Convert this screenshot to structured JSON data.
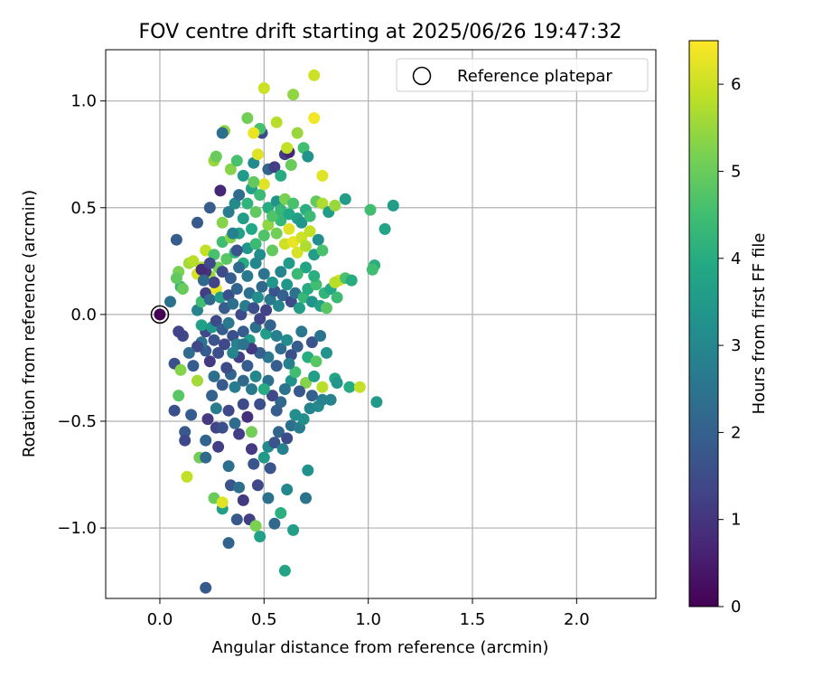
{
  "chart_data": {
    "type": "scatter",
    "title": "FOV centre drift starting at 2025/06/26 19:47:32",
    "xlabel": "Angular distance from reference (arcmin)",
    "ylabel": "Rotation from reference (arcmin)",
    "xlim": [
      -0.26,
      2.38
    ],
    "ylim": [
      -1.33,
      1.24
    ],
    "xticks": [
      0.0,
      0.5,
      1.0,
      1.5,
      2.0
    ],
    "xtick_labels": [
      "0.0",
      "0.5",
      "1.0",
      "1.5",
      "2.0"
    ],
    "yticks": [
      -1.0,
      -0.5,
      0.0,
      0.5,
      1.0
    ],
    "ytick_labels": [
      "−1.0",
      "−0.5",
      "0.0",
      "0.5",
      "1.0"
    ],
    "grid": true,
    "legend": {
      "placement": "top-right",
      "entries": [
        "Reference platepar"
      ]
    },
    "reference_point": {
      "x": 0.0,
      "y": 0.0,
      "color_value": 0.0
    },
    "colorbar": {
      "label": "Hours from first FF file",
      "range": [
        0,
        6.5
      ],
      "ticks": [
        0,
        1,
        2,
        3,
        4,
        5,
        6
      ],
      "tick_labels": [
        "0",
        "1",
        "2",
        "3",
        "4",
        "5",
        "6"
      ],
      "colormap": "viridis"
    },
    "points": [
      [
        0.22,
        -1.28,
        1.8
      ],
      [
        0.33,
        -1.07,
        2.1
      ],
      [
        0.6,
        -1.2,
        3.8
      ],
      [
        0.13,
        -0.76,
        5.9
      ],
      [
        0.19,
        -0.67,
        5.1
      ],
      [
        0.22,
        -0.67,
        2.2
      ],
      [
        0.26,
        -0.86,
        5.0
      ],
      [
        0.3,
        -0.91,
        3.6
      ],
      [
        0.3,
        -0.88,
        6.2
      ],
      [
        0.34,
        -0.8,
        1.7
      ],
      [
        0.38,
        -0.81,
        2.4
      ],
      [
        0.4,
        -0.87,
        1.1
      ],
      [
        0.37,
        -0.96,
        1.8
      ],
      [
        0.43,
        -0.96,
        1.2
      ],
      [
        0.46,
        -0.99,
        5.2
      ],
      [
        0.48,
        -1.04,
        3.7
      ],
      [
        0.55,
        -0.98,
        2.2
      ],
      [
        0.64,
        -1.01,
        3.6
      ],
      [
        0.58,
        -0.93,
        4.1
      ],
      [
        0.52,
        -0.86,
        2.4
      ],
      [
        0.61,
        -0.82,
        3.0
      ],
      [
        0.71,
        -0.73,
        3.3
      ],
      [
        0.7,
        -0.86,
        2.5
      ],
      [
        0.47,
        -0.8,
        1.4
      ],
      [
        0.33,
        -0.71,
        2.4
      ],
      [
        0.28,
        -0.62,
        1.2
      ],
      [
        0.22,
        -0.59,
        2.1
      ],
      [
        0.12,
        -0.55,
        1.8
      ],
      [
        0.12,
        -0.59,
        1.4
      ],
      [
        0.07,
        -0.45,
        1.6
      ],
      [
        0.07,
        -0.23,
        1.6
      ],
      [
        0.1,
        -0.26,
        5.3
      ],
      [
        0.09,
        -0.38,
        4.8
      ],
      [
        0.18,
        -0.31,
        5.6
      ],
      [
        0.15,
        -0.47,
        1.9
      ],
      [
        0.23,
        -0.49,
        1.1
      ],
      [
        0.25,
        -0.38,
        2.0
      ],
      [
        0.27,
        -0.44,
        2.7
      ],
      [
        0.27,
        -0.53,
        1.3
      ],
      [
        0.3,
        -0.53,
        1.6
      ],
      [
        0.33,
        -0.45,
        1.4
      ],
      [
        0.36,
        -0.51,
        2.3
      ],
      [
        0.38,
        -0.56,
        1.2
      ],
      [
        0.4,
        -0.42,
        1.5
      ],
      [
        0.42,
        -0.48,
        0.9
      ],
      [
        0.44,
        -0.55,
        5.1
      ],
      [
        0.44,
        -0.63,
        1.1
      ],
      [
        0.45,
        -0.7,
        1.7
      ],
      [
        0.5,
        -0.67,
        3.5
      ],
      [
        0.52,
        -0.62,
        3.1
      ],
      [
        0.53,
        -0.72,
        1.7
      ],
      [
        0.55,
        -0.6,
        1.7
      ],
      [
        0.57,
        -0.55,
        2.1
      ],
      [
        0.59,
        -0.63,
        2.8
      ],
      [
        0.61,
        -0.58,
        1.5
      ],
      [
        0.63,
        -0.52,
        2.4
      ],
      [
        0.65,
        -0.47,
        3.2
      ],
      [
        0.67,
        -0.53,
        2.7
      ],
      [
        0.69,
        -0.49,
        3.2
      ],
      [
        0.72,
        -0.44,
        2.9
      ],
      [
        0.76,
        -0.43,
        3.1
      ],
      [
        0.78,
        -0.4,
        2.8
      ],
      [
        0.73,
        -0.38,
        2.0
      ],
      [
        0.7,
        -0.32,
        5.3
      ],
      [
        0.67,
        -0.36,
        1.8
      ],
      [
        0.63,
        -0.31,
        3.3
      ],
      [
        0.6,
        -0.35,
        2.5
      ],
      [
        0.58,
        -0.41,
        2.2
      ],
      [
        0.56,
        -0.45,
        1.9
      ],
      [
        0.54,
        -0.38,
        1.4
      ],
      [
        0.52,
        -0.31,
        2.4
      ],
      [
        0.5,
        -0.35,
        4.0
      ],
      [
        0.48,
        -0.42,
        1.6
      ],
      [
        0.46,
        -0.29,
        3.0
      ],
      [
        0.44,
        -0.35,
        2.6
      ],
      [
        0.42,
        -0.24,
        1.9
      ],
      [
        0.4,
        -0.31,
        2.2
      ],
      [
        0.38,
        -0.2,
        1.2
      ],
      [
        0.36,
        -0.34,
        2.7
      ],
      [
        0.34,
        -0.28,
        2.1
      ],
      [
        0.32,
        -0.25,
        1.5
      ],
      [
        0.3,
        -0.33,
        1.8
      ],
      [
        0.28,
        -0.18,
        1.6
      ],
      [
        0.26,
        -0.29,
        2.4
      ],
      [
        0.24,
        -0.22,
        1.1
      ],
      [
        0.22,
        -0.17,
        1.9
      ],
      [
        0.2,
        -0.13,
        2.5
      ],
      [
        0.18,
        -0.15,
        1.4
      ],
      [
        0.16,
        -0.24,
        1.9
      ],
      [
        0.14,
        -0.18,
        2.3
      ],
      [
        0.11,
        -0.1,
        1.4
      ],
      [
        0.09,
        -0.08,
        1.3
      ],
      [
        0.22,
        -0.08,
        1.4
      ],
      [
        0.25,
        -0.06,
        3.4
      ],
      [
        0.27,
        -0.03,
        1.5
      ],
      [
        0.3,
        -0.07,
        1.9
      ],
      [
        0.33,
        -0.04,
        2.6
      ],
      [
        0.35,
        -0.1,
        1.6
      ],
      [
        0.37,
        -0.14,
        2.8
      ],
      [
        0.4,
        -0.08,
        1.9
      ],
      [
        0.43,
        -0.12,
        3.5
      ],
      [
        0.46,
        -0.06,
        2.4
      ],
      [
        0.48,
        -0.02,
        1.3
      ],
      [
        0.51,
        -0.09,
        3.6
      ],
      [
        0.53,
        -0.05,
        2.1
      ],
      [
        0.56,
        -0.1,
        2.8
      ],
      [
        0.58,
        -0.16,
        2.3
      ],
      [
        0.61,
        -0.12,
        3.1
      ],
      [
        0.63,
        -0.19,
        1.6
      ],
      [
        0.66,
        -0.15,
        1.9
      ],
      [
        0.68,
        -0.08,
        2.6
      ],
      [
        0.71,
        -0.2,
        4.0
      ],
      [
        0.73,
        -0.13,
        1.7
      ],
      [
        0.75,
        -0.22,
        4.8
      ],
      [
        0.77,
        -0.1,
        2.5
      ],
      [
        0.8,
        -0.18,
        3.3
      ],
      [
        0.84,
        -0.3,
        3.8
      ],
      [
        0.82,
        -0.4,
        2.9
      ],
      [
        0.85,
        -0.32,
        3.4
      ],
      [
        0.91,
        -0.34,
        4.0
      ],
      [
        0.96,
        -0.34,
        5.9
      ],
      [
        1.04,
        -0.41,
        3.5
      ],
      [
        0.78,
        -0.34,
        5.8
      ],
      [
        0.74,
        -0.29,
        3.6
      ],
      [
        0.65,
        -0.27,
        4.5
      ],
      [
        0.62,
        -0.23,
        2.8
      ],
      [
        0.56,
        -0.24,
        1.9
      ],
      [
        0.52,
        -0.2,
        2.6
      ],
      [
        0.48,
        -0.18,
        2.0
      ],
      [
        0.44,
        -0.16,
        1.1
      ],
      [
        0.4,
        -0.14,
        2.5
      ],
      [
        0.35,
        -0.18,
        2.9
      ],
      [
        0.31,
        -0.14,
        1.4
      ],
      [
        0.26,
        -0.12,
        1.7
      ],
      [
        0.2,
        -0.05,
        3.7
      ],
      [
        0.18,
        0.02,
        2.9
      ],
      [
        0.2,
        0.06,
        4.5
      ],
      [
        0.22,
        0.1,
        1.2
      ],
      [
        0.24,
        0.07,
        2.2
      ],
      [
        0.27,
        0.12,
        6.3
      ],
      [
        0.29,
        0.08,
        3.6
      ],
      [
        0.31,
        0.03,
        1.9
      ],
      [
        0.33,
        0.09,
        1.6
      ],
      [
        0.35,
        0.05,
        2.4
      ],
      [
        0.37,
        0.12,
        2.1
      ],
      [
        0.39,
        0.0,
        1.5
      ],
      [
        0.41,
        0.04,
        2.7
      ],
      [
        0.43,
        0.1,
        2.4
      ],
      [
        0.45,
        0.03,
        1.6
      ],
      [
        0.47,
        0.08,
        3.2
      ],
      [
        0.49,
        0.13,
        2.2
      ],
      [
        0.51,
        0.02,
        1.3
      ],
      [
        0.53,
        0.07,
        2.6
      ],
      [
        0.55,
        0.11,
        1.7
      ],
      [
        0.57,
        0.04,
        3.0
      ],
      [
        0.59,
        0.09,
        2.0
      ],
      [
        0.61,
        0.14,
        3.4
      ],
      [
        0.63,
        0.06,
        1.5
      ],
      [
        0.65,
        0.1,
        2.5
      ],
      [
        0.67,
        0.03,
        3.6
      ],
      [
        0.69,
        0.08,
        4.3
      ],
      [
        0.71,
        0.12,
        4.0
      ],
      [
        0.73,
        0.06,
        3.3
      ],
      [
        0.75,
        0.14,
        4.5
      ],
      [
        0.77,
        0.04,
        3.7
      ],
      [
        0.79,
        0.1,
        4.2
      ],
      [
        0.82,
        0.12,
        3.9
      ],
      [
        0.85,
        0.08,
        4.4
      ],
      [
        0.86,
        0.16,
        6.2
      ],
      [
        0.89,
        0.17,
        4.6
      ],
      [
        0.84,
        0.15,
        5.8
      ],
      [
        0.92,
        0.16,
        4.0
      ],
      [
        1.03,
        0.23,
        4.1
      ],
      [
        1.02,
        0.21,
        4.5
      ],
      [
        0.8,
        0.03,
        4.8
      ],
      [
        0.05,
        0.06,
        2.4
      ],
      [
        0.09,
        0.2,
        5.2
      ],
      [
        0.1,
        0.13,
        4.2
      ],
      [
        0.11,
        0.12,
        5.0
      ],
      [
        0.08,
        0.17,
        4.9
      ],
      [
        0.14,
        0.24,
        5.6
      ],
      [
        0.16,
        0.25,
        5.8
      ],
      [
        0.18,
        0.19,
        6.1
      ],
      [
        0.2,
        0.22,
        5.7
      ],
      [
        0.22,
        0.3,
        5.9
      ],
      [
        0.24,
        0.18,
        5.5
      ],
      [
        0.26,
        0.28,
        4.6
      ],
      [
        0.28,
        0.22,
        5.1
      ],
      [
        0.3,
        0.34,
        4.5
      ],
      [
        0.32,
        0.26,
        4.8
      ],
      [
        0.34,
        0.36,
        5.3
      ],
      [
        0.36,
        0.29,
        4.2
      ],
      [
        0.38,
        0.38,
        3.7
      ],
      [
        0.4,
        0.24,
        4.0
      ],
      [
        0.42,
        0.31,
        3.4
      ],
      [
        0.44,
        0.4,
        3.9
      ],
      [
        0.46,
        0.33,
        4.4
      ],
      [
        0.48,
        0.28,
        3.1
      ],
      [
        0.5,
        0.37,
        4.7
      ],
      [
        0.52,
        0.42,
        5.4
      ],
      [
        0.54,
        0.3,
        4.9
      ],
      [
        0.56,
        0.38,
        5.1
      ],
      [
        0.58,
        0.44,
        4.3
      ],
      [
        0.6,
        0.33,
        6.0
      ],
      [
        0.62,
        0.4,
        6.2
      ],
      [
        0.64,
        0.34,
        6.3
      ],
      [
        0.66,
        0.29,
        6.1
      ],
      [
        0.68,
        0.36,
        6.0
      ],
      [
        0.7,
        0.32,
        5.7
      ],
      [
        0.72,
        0.39,
        5.9
      ],
      [
        0.74,
        0.28,
        3.6
      ],
      [
        0.76,
        0.35,
        3.2
      ],
      [
        0.78,
        0.3,
        4.6
      ],
      [
        0.74,
        0.18,
        4.1
      ],
      [
        0.7,
        0.22,
        3.8
      ],
      [
        0.66,
        0.19,
        4.4
      ],
      [
        0.62,
        0.24,
        3.5
      ],
      [
        0.58,
        0.2,
        2.9
      ],
      [
        0.54,
        0.15,
        3.4
      ],
      [
        0.5,
        0.19,
        2.5
      ],
      [
        0.46,
        0.24,
        3.0
      ],
      [
        0.42,
        0.18,
        2.6
      ],
      [
        0.38,
        0.22,
        2.3
      ],
      [
        0.34,
        0.17,
        1.9
      ],
      [
        0.3,
        0.2,
        1.5
      ],
      [
        0.26,
        0.15,
        1.3
      ],
      [
        0.22,
        0.2,
        1.0
      ],
      [
        0.2,
        0.21,
        0.8
      ],
      [
        0.24,
        0.24,
        1.4
      ],
      [
        0.21,
        0.16,
        2.2
      ],
      [
        0.08,
        0.35,
        1.9
      ],
      [
        0.18,
        0.43,
        1.8
      ],
      [
        0.24,
        0.5,
        1.9
      ],
      [
        0.29,
        0.58,
        0.7
      ],
      [
        0.3,
        0.43,
        5.3
      ],
      [
        0.33,
        0.48,
        2.7
      ],
      [
        0.36,
        0.52,
        3.1
      ],
      [
        0.38,
        0.56,
        2.3
      ],
      [
        0.4,
        0.45,
        3.6
      ],
      [
        0.42,
        0.52,
        4.2
      ],
      [
        0.44,
        0.59,
        3.7
      ],
      [
        0.46,
        0.48,
        4.9
      ],
      [
        0.48,
        0.56,
        4.4
      ],
      [
        0.5,
        0.61,
        6.2
      ],
      [
        0.52,
        0.5,
        4.0
      ],
      [
        0.54,
        0.46,
        4.7
      ],
      [
        0.56,
        0.53,
        3.3
      ],
      [
        0.58,
        0.49,
        4.3
      ],
      [
        0.6,
        0.54,
        5.2
      ],
      [
        0.62,
        0.47,
        3.9
      ],
      [
        0.64,
        0.52,
        4.6
      ],
      [
        0.66,
        0.45,
        3.7
      ],
      [
        0.68,
        0.43,
        3.4
      ],
      [
        0.7,
        0.49,
        4.1
      ],
      [
        0.72,
        0.46,
        4.4
      ],
      [
        0.75,
        0.53,
        4.9
      ],
      [
        0.78,
        0.52,
        5.7
      ],
      [
        0.81,
        0.48,
        3.6
      ],
      [
        0.84,
        0.51,
        5.5
      ],
      [
        0.89,
        0.54,
        3.6
      ],
      [
        1.01,
        0.49,
        4.5
      ],
      [
        1.08,
        0.4,
        3.8
      ],
      [
        1.12,
        0.51,
        3.6
      ],
      [
        0.6,
        0.75,
        1.2
      ],
      [
        0.62,
        0.76,
        0.7
      ],
      [
        0.26,
        0.72,
        5.5
      ],
      [
        0.27,
        0.74,
        5.0
      ],
      [
        0.34,
        0.68,
        5.3
      ],
      [
        0.37,
        0.72,
        4.6
      ],
      [
        0.4,
        0.65,
        3.5
      ],
      [
        0.42,
        0.92,
        5.1
      ],
      [
        0.45,
        0.71,
        3.1
      ],
      [
        0.47,
        0.75,
        6.2
      ],
      [
        0.49,
        0.85,
        1.5
      ],
      [
        0.52,
        0.68,
        2.1
      ],
      [
        0.55,
        0.69,
        1.2
      ],
      [
        0.58,
        0.65,
        4.0
      ],
      [
        0.61,
        0.78,
        5.9
      ],
      [
        0.63,
        0.7,
        5.0
      ],
      [
        0.66,
        0.85,
        5.5
      ],
      [
        0.69,
        0.78,
        4.5
      ],
      [
        0.71,
        0.74,
        3.3
      ],
      [
        0.74,
        0.92,
        6.4
      ],
      [
        0.78,
        0.65,
        6.2
      ],
      [
        0.5,
        1.06,
        6.0
      ],
      [
        0.64,
        1.03,
        5.4
      ],
      [
        0.74,
        1.12,
        6.0
      ],
      [
        0.56,
        0.9,
        5.8
      ],
      [
        0.48,
        0.87,
        4.6
      ],
      [
        0.45,
        0.85,
        6.3
      ],
      [
        0.31,
        0.86,
        5.4
      ],
      [
        0.3,
        0.85,
        2.4
      ],
      [
        0.45,
        0.62,
        4.9
      ],
      [
        0.35,
        0.38,
        2.8
      ],
      [
        0.37,
        0.3,
        1.7
      ]
    ]
  }
}
